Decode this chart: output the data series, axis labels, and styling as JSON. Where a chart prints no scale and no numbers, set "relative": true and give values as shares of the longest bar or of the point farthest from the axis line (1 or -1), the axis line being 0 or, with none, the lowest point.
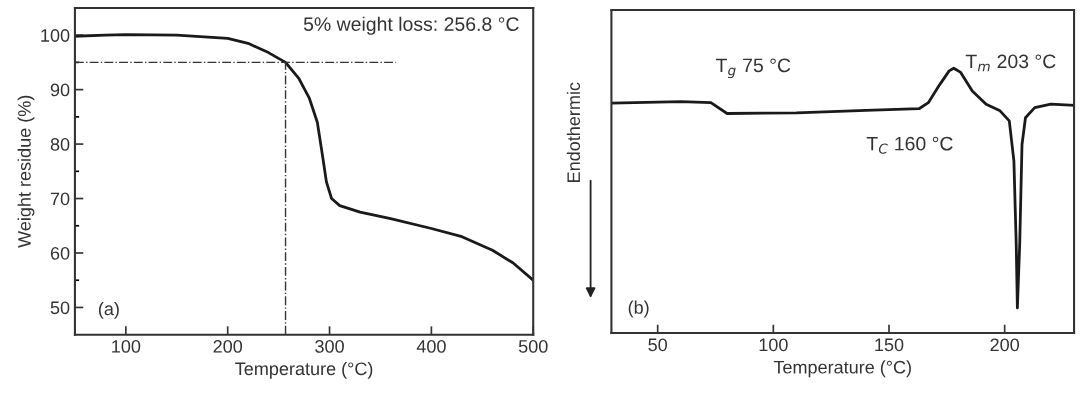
{
  "chart_data": [
    {
      "type": "line",
      "xlabel": "Temperature (°C)",
      "ylabel": "Weight residue (%)",
      "x": [
        50,
        80,
        100,
        150,
        200,
        220,
        240,
        256.8,
        270,
        280,
        288,
        293,
        297,
        302,
        310,
        330,
        360,
        400,
        430,
        460,
        480,
        500
      ],
      "series": [
        {
          "color": "#1a1a1a",
          "values": [
            99.8,
            100,
            100.1,
            100,
            99.4,
            98.5,
            96.8,
            95,
            92,
            88.5,
            84,
            78,
            73,
            70,
            68.7,
            67.5,
            66.3,
            64.5,
            63,
            60.5,
            58.2,
            55
          ]
        }
      ],
      "xlim": [
        50,
        500
      ],
      "xticks": [
        100,
        200,
        300,
        400,
        500
      ],
      "ylim": [
        45,
        105
      ],
      "yticks": [
        50,
        {
          "value": 55,
          "label": null
        },
        60,
        {
          "value": 65,
          "label": null
        },
        70,
        {
          "value": 75,
          "label": null
        },
        80,
        {
          "value": 85,
          "label": null
        },
        90,
        {
          "value": 95,
          "label": null
        },
        100
      ],
      "ref_lines": [
        {
          "axis": "y",
          "value": 95,
          "color": "#333333",
          "line_style": "dashdot"
        },
        {
          "axis": "x",
          "value": 256.8,
          "color": "#333333",
          "line_style": "dashdot"
        }
      ],
      "annotations": [
        "5% weight loss: 256.8 °C",
        "(a)"
      ],
      "grid": false,
      "legend": false,
      "line_style": "solid",
      "marker": "none"
    },
    {
      "type": "line",
      "xlabel": "Temperature (°C)",
      "ylabel": "Endothermic",
      "relative": true,
      "tick_labels": "x",
      "x": [
        30,
        60,
        73,
        80,
        110,
        140,
        163,
        167,
        172,
        176,
        178,
        181,
        186,
        192,
        198,
        202,
        204,
        205,
        205.5,
        206.5,
        207.5,
        209,
        213,
        220,
        230
      ],
      "series": [
        {
          "color": "#1a1a1a",
          "values": [
            0.868,
            0.874,
            0.87,
            0.829,
            0.831,
            0.841,
            0.847,
            0.87,
            0.939,
            0.99,
            1,
            0.984,
            0.914,
            0.864,
            0.839,
            0.801,
            0.649,
            0.334,
            0.095,
            0.334,
            0.712,
            0.813,
            0.851,
            0.864,
            0.86
          ]
        }
      ],
      "xlim": [
        30,
        230
      ],
      "xticks": [
        50,
        100,
        150,
        200
      ],
      "annotations": [
        {
          "text": "T$_{g}$ 75 °C",
          "x": 75,
          "y": 0.87
        },
        {
          "text": "T$_{C}$ 160 °C",
          "x": 163,
          "y": 0.847
        },
        "T$_{m}$ 203 °C",
        "(b)"
      ],
      "grid": false,
      "legend": false,
      "line_style": "solid",
      "marker": "none"
    }
  ]
}
